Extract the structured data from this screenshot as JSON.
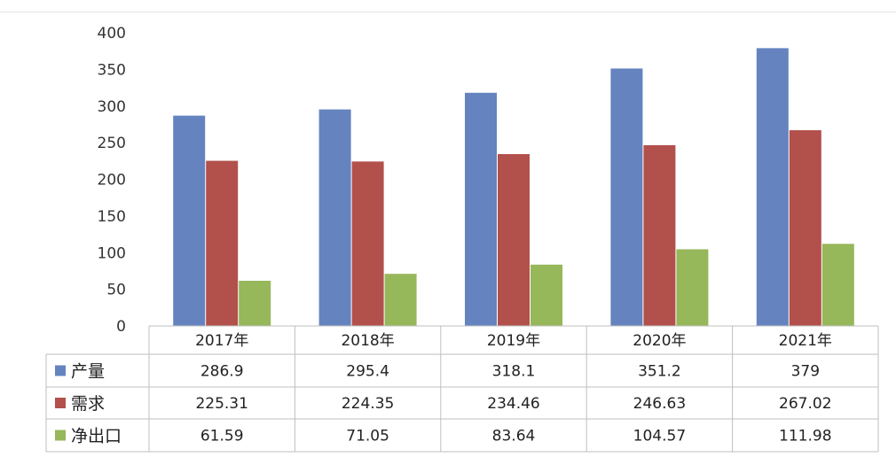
{
  "chart_data": {
    "type": "bar",
    "categories": [
      "2017年",
      "2018年",
      "2019年",
      "2020年",
      "2021年"
    ],
    "series": [
      {
        "name": "产量",
        "values": [
          286.9,
          295.4,
          318.1,
          351.2,
          379
        ],
        "labels": [
          "286.9",
          "295.4",
          "318.1",
          "351.2",
          "379"
        ],
        "color": "#6483bf"
      },
      {
        "name": "需求",
        "values": [
          225.31,
          224.35,
          234.46,
          246.63,
          267.02
        ],
        "labels": [
          "225.31",
          "224.35",
          "234.46",
          "246.63",
          "267.02"
        ],
        "color": "#b2504c"
      },
      {
        "name": "净出口",
        "values": [
          61.59,
          71.05,
          83.64,
          104.57,
          111.98
        ],
        "labels": [
          "61.59",
          "71.05",
          "83.64",
          "104.57",
          "111.98"
        ],
        "color": "#96b75a"
      }
    ],
    "yticks": [
      "0",
      "50",
      "100",
      "150",
      "200",
      "250",
      "300",
      "350",
      "400"
    ],
    "ylim": [
      0,
      400
    ],
    "legend": "data-table"
  }
}
